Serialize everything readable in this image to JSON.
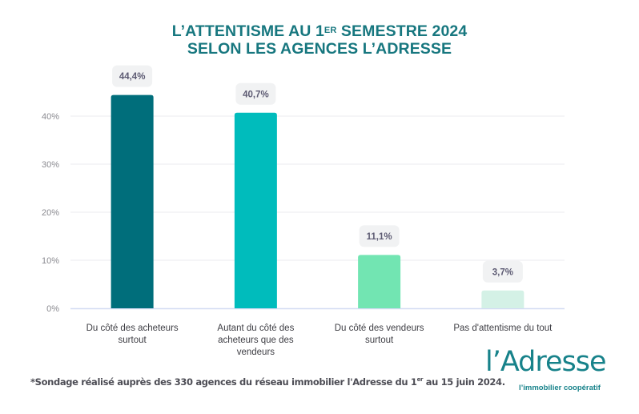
{
  "header": {
    "title_line1_pre": "L’ATTENTISME AU 1",
    "title_line1_sup": "ER",
    "title_line1_post": " SEMESTRE 2024",
    "title_line2": "SELON LES AGENCES L’ADRESSE"
  },
  "chart_data": {
    "type": "bar",
    "title": "L’ATTENTISME AU 1ER SEMESTRE 2024 SELON LES AGENCES L’ADRESSE",
    "xlabel": "",
    "ylabel": "",
    "ylim": [
      0,
      48
    ],
    "grid": true,
    "yticks": [
      0,
      10,
      20,
      30,
      40
    ],
    "ytick_labels": [
      "0%",
      "10%",
      "20%",
      "30%",
      "40%"
    ],
    "categories": [
      [
        "Du côté des acheteurs",
        "surtout"
      ],
      [
        "Autant du côté des",
        "acheteurs que des",
        "vendeurs"
      ],
      [
        "Du côté des vendeurs",
        "surtout"
      ],
      [
        "Pas d'attentisme du tout"
      ]
    ],
    "values": [
      44.4,
      40.7,
      11.1,
      3.7
    ],
    "value_labels": [
      "44,4%",
      "40,7%",
      "11,1%",
      "3,7%"
    ],
    "colors": [
      "#006e7b",
      "#00bcbc",
      "#72e5b2",
      "#d4f1e6"
    ]
  },
  "footnote": {
    "pre": "*Sondage réalisé auprès des 330 agences du réseau immobilier l'Adresse du 1",
    "sup": "er",
    "post": " au 15 juin 2024."
  },
  "logo": {
    "name": "l’Adresse",
    "tagline": "l’immobilier coopératif"
  }
}
